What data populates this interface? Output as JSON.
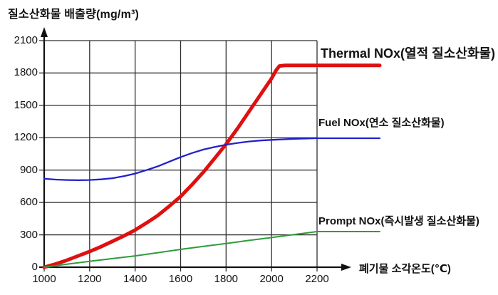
{
  "colors": {
    "background": "#ffffff",
    "grid": "#2e2e2e",
    "axis": "#111111",
    "text": "#111111",
    "thermal_red": "#de1010",
    "fuel_blue": "#2222cc",
    "prompt_green": "#2f9c3c"
  },
  "chart_data": {
    "type": "line",
    "title": "질소산화물 배출량(mg/m³)",
    "xlabel": "폐기물 소각온도(℃)",
    "ylabel": "질소산화물 배출량(mg/m³)",
    "xlim": [
      1000,
      2200
    ],
    "ylim": [
      0,
      2100
    ],
    "x_ticks": [
      1000,
      1200,
      1400,
      1600,
      1800,
      2000,
      2200
    ],
    "y_ticks": [
      0,
      300,
      600,
      900,
      1200,
      1500,
      1800,
      2100
    ],
    "grid": true,
    "legend_position": "labels-at-line-ends-right",
    "series": [
      {
        "name": "Thermal NOx(열적 질소산화물)",
        "color": "#de1010",
        "stroke_width": 5,
        "points": [
          [
            1000,
            0
          ],
          [
            1050,
            30
          ],
          [
            1100,
            65
          ],
          [
            1150,
            105
          ],
          [
            1200,
            145
          ],
          [
            1250,
            190
          ],
          [
            1300,
            240
          ],
          [
            1350,
            290
          ],
          [
            1400,
            345
          ],
          [
            1450,
            410
          ],
          [
            1500,
            480
          ],
          [
            1550,
            565
          ],
          [
            1600,
            655
          ],
          [
            1650,
            765
          ],
          [
            1700,
            880
          ],
          [
            1750,
            1010
          ],
          [
            1800,
            1140
          ],
          [
            1850,
            1285
          ],
          [
            1900,
            1440
          ],
          [
            1950,
            1595
          ],
          [
            2000,
            1750
          ],
          [
            2020,
            1825
          ],
          [
            2035,
            1865
          ],
          [
            2060,
            1870
          ],
          [
            2200,
            1870
          ]
        ]
      },
      {
        "name": "Fuel NOx(연소 질소산화물)",
        "color": "#2222cc",
        "stroke_width": 2.3,
        "points": [
          [
            1000,
            820
          ],
          [
            1050,
            812
          ],
          [
            1100,
            808
          ],
          [
            1150,
            806
          ],
          [
            1200,
            808
          ],
          [
            1250,
            814
          ],
          [
            1300,
            825
          ],
          [
            1350,
            843
          ],
          [
            1400,
            868
          ],
          [
            1450,
            900
          ],
          [
            1500,
            935
          ],
          [
            1550,
            978
          ],
          [
            1600,
            1020
          ],
          [
            1650,
            1058
          ],
          [
            1700,
            1090
          ],
          [
            1750,
            1115
          ],
          [
            1800,
            1135
          ],
          [
            1850,
            1152
          ],
          [
            1900,
            1165
          ],
          [
            1950,
            1174
          ],
          [
            2000,
            1180
          ],
          [
            2100,
            1190
          ],
          [
            2200,
            1195
          ]
        ]
      },
      {
        "name": "Prompt NOx(즉시발생 질소산화물)",
        "color": "#2f9c3c",
        "stroke_width": 2,
        "points": [
          [
            1000,
            0
          ],
          [
            1100,
            28
          ],
          [
            1200,
            55
          ],
          [
            1300,
            80
          ],
          [
            1400,
            105
          ],
          [
            1500,
            135
          ],
          [
            1600,
            165
          ],
          [
            1700,
            193
          ],
          [
            1800,
            220
          ],
          [
            1900,
            248
          ],
          [
            2000,
            275
          ],
          [
            2100,
            303
          ],
          [
            2200,
            330
          ]
        ]
      }
    ]
  }
}
